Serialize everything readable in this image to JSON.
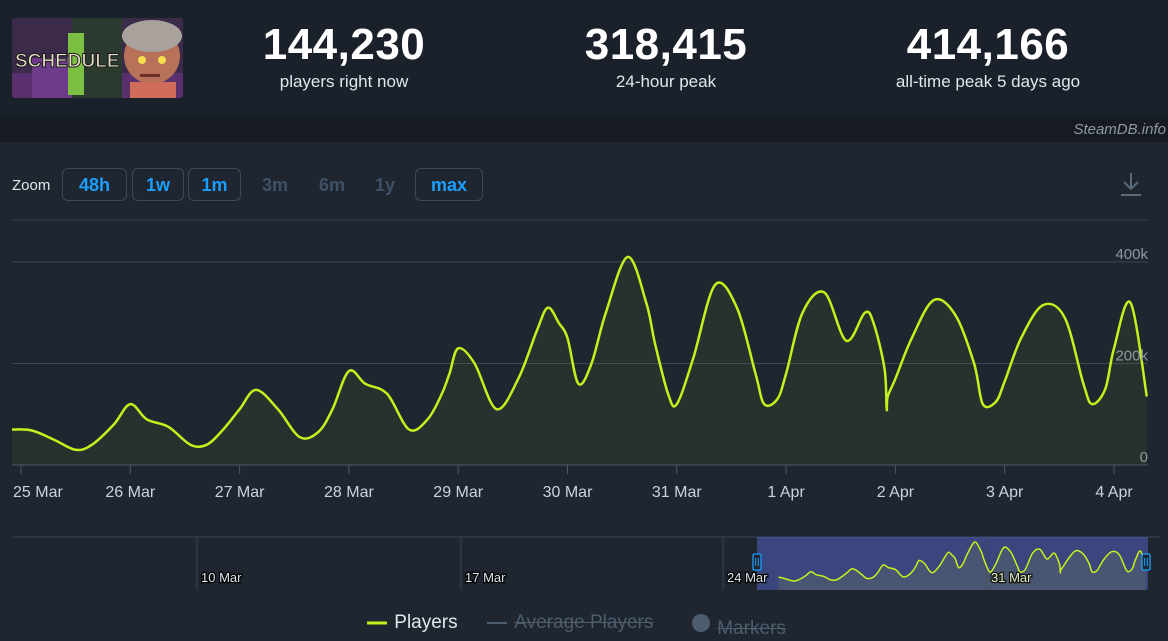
{
  "header": {
    "stats": [
      {
        "value": "144,230",
        "label": "players right now"
      },
      {
        "value": "318,415",
        "label": "24-hour peak"
      },
      {
        "value": "414,166",
        "label": "all-time peak 5 days ago"
      }
    ],
    "logo_text": "SCHEDULE",
    "logo_numeral": "I"
  },
  "brand": "SteamDB.info",
  "zoom": {
    "label": "Zoom",
    "buttons": [
      {
        "label": "48h",
        "enabled": true
      },
      {
        "label": "1w",
        "enabled": true
      },
      {
        "label": "1m",
        "enabled": true
      },
      {
        "label": "3m",
        "enabled": false
      },
      {
        "label": "6m",
        "enabled": false
      },
      {
        "label": "1y",
        "enabled": false
      },
      {
        "label": "max",
        "enabled": true
      }
    ]
  },
  "legend": {
    "players": "Players",
    "average": "Average Players",
    "markers": "Markers"
  },
  "colors": {
    "series": "#c6f01c",
    "accent": "#1a9fff",
    "background": "#1f2630"
  },
  "chart_data": {
    "type": "line",
    "title": "",
    "xlabel": "",
    "ylabel": "",
    "ylim": [
      0,
      400000
    ],
    "yticks": [
      {
        "value": 0,
        "label": "0"
      },
      {
        "value": 200000,
        "label": "200k"
      },
      {
        "value": 400000,
        "label": "400k"
      }
    ],
    "xticks": [
      "25 Mar",
      "26 Mar",
      "27 Mar",
      "28 Mar",
      "29 Mar",
      "30 Mar",
      "31 Mar",
      "1 Apr",
      "2 Apr",
      "3 Apr",
      "4 Apr"
    ],
    "x_unit": "days from 25 Mar 00:00",
    "grid": true,
    "legend_position": "bottom",
    "series": [
      {
        "name": "Players",
        "x": [
          -0.1,
          0.1,
          0.3,
          0.5,
          0.65,
          0.85,
          1.0,
          1.15,
          1.35,
          1.55,
          1.7,
          1.85,
          2.0,
          2.15,
          2.35,
          2.55,
          2.72,
          2.85,
          3.0,
          3.15,
          3.35,
          3.55,
          3.72,
          3.85,
          3.92,
          4.0,
          4.15,
          4.35,
          4.55,
          4.72,
          4.82,
          4.92,
          5.0,
          5.1,
          5.22,
          5.35,
          5.55,
          5.72,
          5.8,
          5.92,
          6.0,
          6.15,
          6.35,
          6.55,
          6.72,
          6.8,
          6.92,
          7.0,
          7.15,
          7.35,
          7.55,
          7.72,
          7.8,
          7.9,
          7.92,
          7.93,
          8.0,
          8.15,
          8.35,
          8.55,
          8.72,
          8.8,
          8.92,
          9.0,
          9.15,
          9.35,
          9.55,
          9.72,
          9.8,
          9.92,
          10.0,
          10.15,
          10.3
        ],
        "values": [
          70000,
          68000,
          50000,
          30000,
          40000,
          80000,
          120000,
          90000,
          75000,
          40000,
          40000,
          70000,
          110000,
          148000,
          110000,
          55000,
          65000,
          110000,
          185000,
          160000,
          140000,
          70000,
          90000,
          140000,
          180000,
          230000,
          200000,
          110000,
          170000,
          265000,
          310000,
          280000,
          250000,
          160000,
          200000,
          300000,
          410000,
          320000,
          240000,
          140000,
          120000,
          210000,
          355000,
          310000,
          180000,
          120000,
          130000,
          180000,
          300000,
          340000,
          245000,
          300000,
          280000,
          190000,
          110000,
          135000,
          170000,
          250000,
          325000,
          295000,
          200000,
          120000,
          125000,
          165000,
          250000,
          315000,
          290000,
          160000,
          120000,
          150000,
          230000,
          320000,
          135000
        ]
      }
    ],
    "navigator": {
      "xticks": [
        "10 Mar",
        "17 Mar",
        "24 Mar",
        "31 Mar"
      ]
    }
  }
}
